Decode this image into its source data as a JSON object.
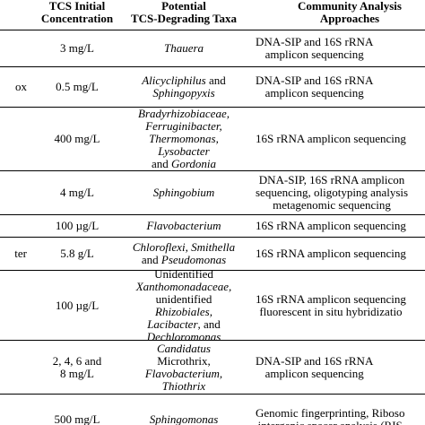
{
  "headers": {
    "concentration": [
      "TCS Initial",
      "Concentration"
    ],
    "taxa": [
      "Potential",
      "TCS-Degrading Taxa"
    ],
    "approaches": [
      "Community Analysis",
      "Approaches"
    ]
  },
  "rows": [
    {
      "left": "",
      "conc": [
        "3 mg/L"
      ],
      "taxa": [
        [
          "Thauera"
        ]
      ],
      "approach": [
        "DNA-SIP and 16S rRNA",
        "amplicon sequencing"
      ]
    },
    {
      "left": "ox",
      "conc": [
        "0.5 mg/L"
      ],
      "taxa": [
        [
          "Alicycliphilus",
          " and"
        ],
        [
          "Sphingopyxis"
        ]
      ],
      "approach": [
        "DNA-SIP and 16S rRNA",
        "amplicon sequencing"
      ]
    },
    {
      "left": "",
      "conc": [
        "400 mg/L"
      ],
      "taxa": [
        [
          "Bradyrhizobiaceae,"
        ],
        [
          "Ferruginibacter,"
        ],
        [
          "Thermomonas, Lysobacter"
        ],
        [
          "",
          "and ",
          "Gordonia"
        ]
      ],
      "approach": [
        "16S rRNA amplicon sequencing"
      ]
    },
    {
      "left": "",
      "conc": [
        "4 mg/L"
      ],
      "taxa": [
        [
          "Sphingobium"
        ]
      ],
      "approach": [
        "DNA-SIP, 16S rRNA amplicon",
        "sequencing, oligotyping analysis",
        "metagenomic sequencing"
      ]
    },
    {
      "left": "",
      "conc": [
        "100 µg/L"
      ],
      "taxa": [
        [
          "Flavobacterium"
        ]
      ],
      "approach": [
        "16S rRNA amplicon sequencing"
      ]
    },
    {
      "left": "ter",
      "conc": [
        "5.8 g/L"
      ],
      "taxa": [
        [
          "Chloroflexi, Smithella"
        ],
        [
          "",
          "and ",
          "Pseudomonas"
        ]
      ],
      "approach": [
        "16S rRNA amplicon sequencing"
      ]
    },
    {
      "left": "",
      "conc": [
        "100 µg/L"
      ],
      "taxa": [
        [
          "",
          "Unidentified"
        ],
        [
          "Xanthomonadaceae,"
        ],
        [
          "",
          "unidentified ",
          "Rhizobiales,"
        ],
        [
          "Lacibacter",
          ", and"
        ],
        [
          "Dechloromonas"
        ]
      ],
      "approach": [
        "16S rRNA amplicon sequencing",
        "fluorescent in situ hybridizatio"
      ]
    },
    {
      "left": "",
      "conc": [
        "2, 4, 6 and",
        "8 mg/L"
      ],
      "taxa": [
        [
          "Candidatus",
          " Microthrix,"
        ],
        [
          "Flavobacterium,"
        ],
        [
          "Thiothrix"
        ]
      ],
      "approach": [
        "DNA-SIP and 16S rRNA",
        "amplicon sequencing"
      ]
    },
    {
      "left": "",
      "conc": [
        "500 mg/L"
      ],
      "taxa": [
        [
          "Sphingomonas"
        ]
      ],
      "approach": [
        "Genomic fingerprinting, Riboso",
        "intergenic spacer analysis (RIS"
      ]
    }
  ]
}
